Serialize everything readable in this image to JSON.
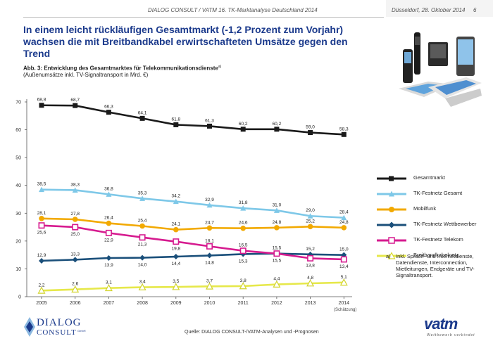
{
  "header": {
    "left": "DIALOG CONSULT / VATM 16. TK-Marktanalyse Deutschland 2014",
    "date": "Düsseldorf, 28. Oktober 2014",
    "page": "6"
  },
  "title": "In einem leicht rückläufigen Gesamtmarkt (-1,2 Prozent zum Vorjahr) wachsen die mit Breitbandkabel erwirtschafteten Umsätze gegen den Trend",
  "subtitle": "Abb. 3: Entwicklung des Gesamtmarktes für Telekommunikationsdienste",
  "subtitle_sup": "a)",
  "subtitle2": "(Außenumsätze inkl. TV-Signaltransport in Mrd. €)",
  "note": {
    "letter": "a)",
    "text": "Inkl. Sprach- und Internetdienste, Datendienste, Interconnection, Mietleitungen, Endgeräte und TV-Signaltransport."
  },
  "estimate_label": "(Schätzung)",
  "source": "Quelle: DIALOG CONSULT-/VATM-Analysen und -Prognosen",
  "logos": {
    "dialog_line1": "DIALOG",
    "dialog_line2": "CONSULT",
    "dialog_gmbh": "GmbH",
    "vatm": "vatm",
    "vatm_tagline": "Wettbewerb verbindet"
  },
  "chart_data": {
    "type": "line",
    "title": "Entwicklung des Gesamtmarktes für Telekommunikationsdienste",
    "xlabel": "",
    "ylabel": "Mrd. €",
    "ylim": [
      0,
      70
    ],
    "yticks": [
      0,
      10,
      20,
      30,
      40,
      50,
      60,
      70
    ],
    "grid": false,
    "legend_position": "right",
    "x": [
      "2005",
      "2006",
      "2007",
      "2008",
      "2009",
      "2010",
      "2011",
      "2012",
      "2013",
      "2014"
    ],
    "series": [
      {
        "name": "Gesamtmarkt",
        "color": "#1a1a1a",
        "marker": "square",
        "values": [
          68.8,
          68.7,
          66.3,
          64.1,
          61.8,
          61.3,
          60.2,
          60.2,
          59.0,
          58.3
        ],
        "labels": [
          "68,8",
          "68,7",
          "66,3",
          "64,1",
          "61,8",
          "61,3",
          "60,2",
          "60,2",
          "59,0",
          "58,3"
        ],
        "label_pos": [
          "above",
          "above",
          "above",
          "above",
          "above",
          "above",
          "above",
          "above",
          "above",
          "above"
        ]
      },
      {
        "name": "TK-Festnetz Gesamt",
        "color": "#7ec8e8",
        "marker": "triangle",
        "values": [
          38.5,
          38.3,
          36.8,
          35.3,
          34.2,
          32.9,
          31.8,
          31.0,
          29.0,
          28.4
        ],
        "labels": [
          "38,5",
          "38,3",
          "36,8",
          "35,3",
          "34,2",
          "32,9",
          "31,8",
          "31,0",
          "29,0",
          "28,4"
        ],
        "label_pos": [
          "above",
          "above",
          "above",
          "above",
          "above",
          "above",
          "above",
          "above",
          "above",
          "above"
        ]
      },
      {
        "name": "Mobilfunk",
        "color": "#f2a900",
        "marker": "circle",
        "values": [
          28.1,
          27.8,
          26.4,
          25.4,
          24.1,
          24.7,
          24.6,
          24.8,
          25.2,
          24.8
        ],
        "labels": [
          "28,1",
          "27,8",
          "26,4",
          "25,4",
          "24,1",
          "24,7",
          "24,6",
          "24,8",
          "25,2",
          "24,8"
        ],
        "label_pos": [
          "above",
          "above",
          "above",
          "above",
          "above",
          "above",
          "above",
          "above",
          "above",
          "above"
        ]
      },
      {
        "name": "TK-Festnetz Wettbewerber",
        "color": "#1a4f7a",
        "marker": "diamond",
        "values": [
          12.9,
          13.3,
          13.9,
          14.0,
          14.4,
          14.8,
          15.3,
          15.5,
          15.2,
          15.0
        ],
        "labels": [
          "12,9",
          "13,3",
          "13,9",
          "14,0",
          "14,4",
          "14,8",
          "15,3",
          "15,5",
          "15,2",
          "15,0"
        ],
        "label_pos": [
          "above",
          "above",
          "below",
          "below",
          "below",
          "below",
          "below",
          "below",
          "above",
          "above"
        ]
      },
      {
        "name": "TK-Festnetz Telekom",
        "color": "#d61b8f",
        "marker": "square-open",
        "values": [
          25.6,
          25.0,
          22.9,
          21.3,
          19.8,
          18.1,
          16.5,
          15.5,
          13.8,
          13.4
        ],
        "labels": [
          "25,6",
          "25,0",
          "22,9",
          "21,3",
          "19,8",
          "18,1",
          "16,5",
          "15,5",
          "13,8",
          "13,4"
        ],
        "label_pos": [
          "below",
          "below",
          "below",
          "below",
          "below",
          "above",
          "above",
          "above",
          "below",
          "below"
        ]
      },
      {
        "name": "Breitbandkabelnetz",
        "color": "#e6e84a",
        "marker": "triangle-open",
        "values": [
          2.2,
          2.6,
          3.1,
          3.4,
          3.5,
          3.7,
          3.8,
          4.4,
          4.8,
          5.1
        ],
        "labels": [
          "2,2",
          "2,6",
          "3,1",
          "3,4",
          "3,5",
          "3,7",
          "3,8",
          "4,4",
          "4,8",
          "5,1"
        ],
        "label_pos": [
          "above",
          "above",
          "above",
          "above",
          "above",
          "above",
          "above",
          "above",
          "above",
          "above"
        ]
      }
    ]
  }
}
